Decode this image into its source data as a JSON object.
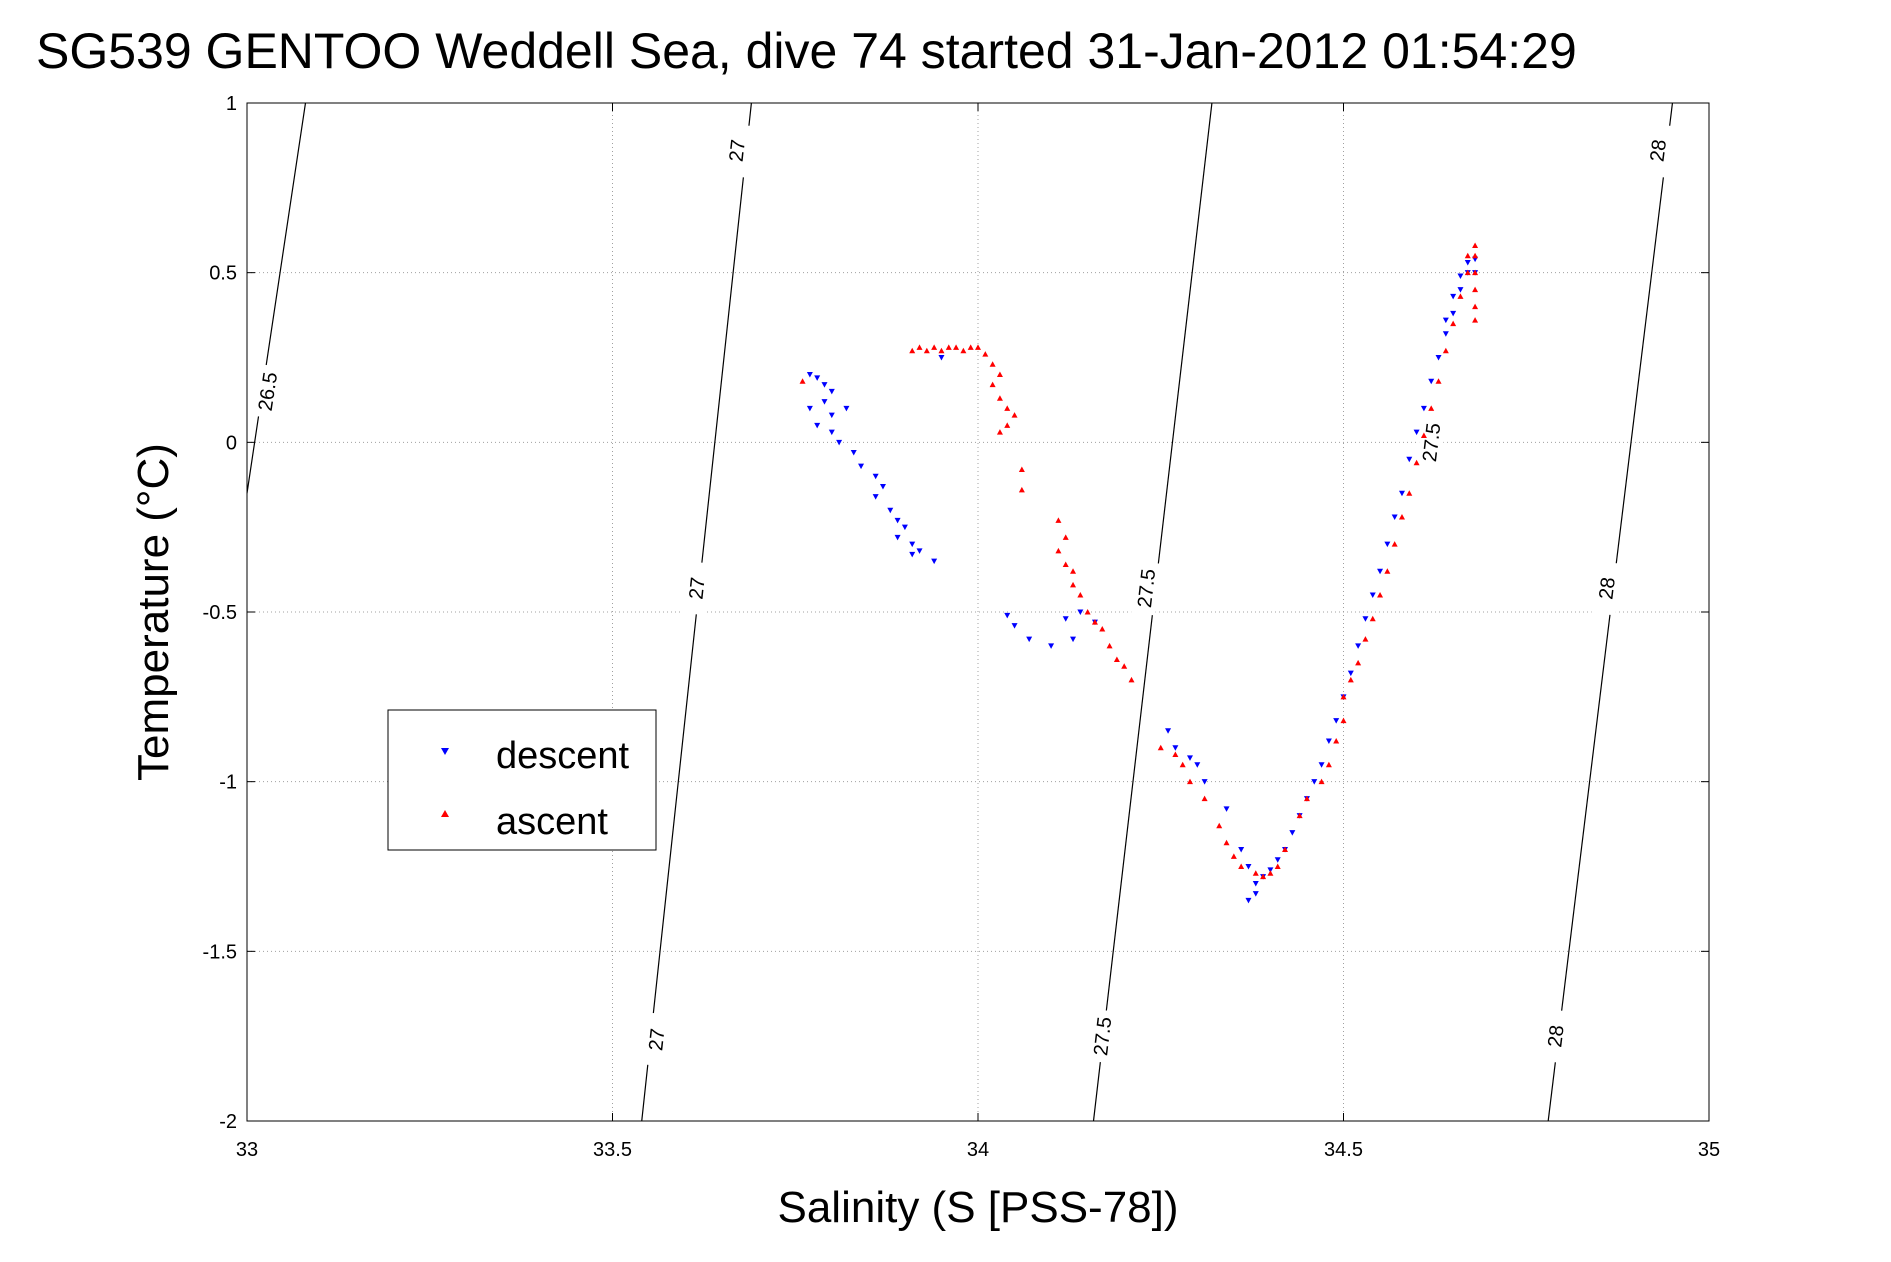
{
  "chart_data": {
    "type": "scatter",
    "title": "SG539 GENTOO Weddell Sea, dive 74 started 31-Jan-2012 01:54:29",
    "xlabel": "Salinity (S [PSS-78])",
    "ylabel": "Temperature (°C)",
    "xlim": [
      33,
      35
    ],
    "ylim": [
      -2,
      1
    ],
    "xticks": [
      "33",
      "33.5",
      "34",
      "34.5",
      "35"
    ],
    "yticks": [
      "1",
      "0.5",
      "0",
      "-0.5",
      "-1",
      "-1.5",
      "-2"
    ],
    "grid": true,
    "legend_position": "middle-left",
    "legend": [
      {
        "label": "descent",
        "color": "#0000ff",
        "marker": "triangle-down"
      },
      {
        "label": "ascent",
        "color": "#ff0000",
        "marker": "triangle-up"
      }
    ],
    "density_contours": [
      {
        "level": "26.5",
        "points": [
          [
            33.0,
            -0.15
          ],
          [
            33.08,
            1.0
          ]
        ],
        "label_positions": [
          [
            33.028,
            0.15
          ]
        ]
      },
      {
        "level": "27",
        "points": [
          [
            33.54,
            -2.0
          ],
          [
            33.69,
            1.0
          ]
        ],
        "label_positions": [
          [
            33.56,
            -1.76
          ],
          [
            33.615,
            -0.43
          ],
          [
            33.67,
            0.86
          ]
        ]
      },
      {
        "level": "27.5",
        "points": [
          [
            34.158,
            -2.0
          ],
          [
            34.32,
            1.0
          ]
        ],
        "label_positions": [
          [
            34.17,
            -1.75
          ],
          [
            34.23,
            -0.43
          ],
          [
            34.62,
            0.0
          ]
        ]
      },
      {
        "level": "28",
        "points": [
          [
            34.78,
            -2.0
          ],
          [
            34.95,
            1.0
          ]
        ],
        "label_positions": [
          [
            34.79,
            -1.75
          ],
          [
            34.86,
            -0.43
          ],
          [
            34.93,
            0.86
          ]
        ]
      }
    ],
    "series": [
      {
        "name": "descent",
        "color": "#0000ff",
        "points": [
          [
            33.77,
            0.2
          ],
          [
            33.78,
            0.19
          ],
          [
            33.79,
            0.17
          ],
          [
            33.8,
            0.15
          ],
          [
            33.79,
            0.12
          ],
          [
            33.77,
            0.1
          ],
          [
            33.8,
            0.08
          ],
          [
            33.82,
            0.1
          ],
          [
            33.78,
            0.05
          ],
          [
            33.8,
            0.03
          ],
          [
            33.81,
            0.0
          ],
          [
            33.83,
            -0.03
          ],
          [
            33.84,
            -0.07
          ],
          [
            33.86,
            -0.1
          ],
          [
            33.87,
            -0.13
          ],
          [
            33.86,
            -0.16
          ],
          [
            33.88,
            -0.2
          ],
          [
            33.89,
            -0.23
          ],
          [
            33.9,
            -0.25
          ],
          [
            33.89,
            -0.28
          ],
          [
            33.91,
            -0.3
          ],
          [
            33.92,
            -0.32
          ],
          [
            33.94,
            -0.35
          ],
          [
            33.91,
            -0.33
          ],
          [
            33.95,
            0.25
          ],
          [
            34.04,
            -0.51
          ],
          [
            34.05,
            -0.54
          ],
          [
            34.07,
            -0.58
          ],
          [
            34.1,
            -0.6
          ],
          [
            34.12,
            -0.52
          ],
          [
            34.14,
            -0.5
          ],
          [
            34.16,
            -0.53
          ],
          [
            34.13,
            -0.58
          ],
          [
            34.26,
            -0.85
          ],
          [
            34.27,
            -0.9
          ],
          [
            34.29,
            -0.93
          ],
          [
            34.3,
            -0.95
          ],
          [
            34.31,
            -1.0
          ],
          [
            34.34,
            -1.08
          ],
          [
            34.36,
            -1.2
          ],
          [
            34.37,
            -1.25
          ],
          [
            34.38,
            -1.3
          ],
          [
            34.38,
            -1.33
          ],
          [
            34.37,
            -1.35
          ],
          [
            34.39,
            -1.28
          ],
          [
            34.4,
            -1.26
          ],
          [
            34.41,
            -1.23
          ],
          [
            34.42,
            -1.2
          ],
          [
            34.43,
            -1.15
          ],
          [
            34.44,
            -1.1
          ],
          [
            34.45,
            -1.05
          ],
          [
            34.46,
            -1.0
          ],
          [
            34.47,
            -0.95
          ],
          [
            34.48,
            -0.88
          ],
          [
            34.49,
            -0.82
          ],
          [
            34.5,
            -0.75
          ],
          [
            34.51,
            -0.68
          ],
          [
            34.52,
            -0.6
          ],
          [
            34.53,
            -0.52
          ],
          [
            34.54,
            -0.45
          ],
          [
            34.55,
            -0.38
          ],
          [
            34.56,
            -0.3
          ],
          [
            34.57,
            -0.22
          ],
          [
            34.58,
            -0.15
          ],
          [
            34.59,
            -0.05
          ],
          [
            34.6,
            0.03
          ],
          [
            34.61,
            0.1
          ],
          [
            34.62,
            0.18
          ],
          [
            34.63,
            0.25
          ],
          [
            34.64,
            0.32
          ],
          [
            34.65,
            0.38
          ],
          [
            34.66,
            0.45
          ],
          [
            34.67,
            0.5
          ],
          [
            34.68,
            0.54
          ],
          [
            34.68,
            0.5
          ],
          [
            34.67,
            0.53
          ],
          [
            34.66,
            0.49
          ],
          [
            34.65,
            0.43
          ],
          [
            34.64,
            0.36
          ]
        ]
      },
      {
        "name": "ascent",
        "color": "#ff0000",
        "points": [
          [
            33.76,
            0.18
          ],
          [
            33.91,
            0.27
          ],
          [
            33.92,
            0.28
          ],
          [
            33.93,
            0.27
          ],
          [
            33.94,
            0.28
          ],
          [
            33.95,
            0.27
          ],
          [
            33.96,
            0.28
          ],
          [
            33.97,
            0.28
          ],
          [
            33.98,
            0.27
          ],
          [
            33.99,
            0.28
          ],
          [
            34.0,
            0.28
          ],
          [
            34.01,
            0.26
          ],
          [
            34.02,
            0.23
          ],
          [
            34.03,
            0.2
          ],
          [
            34.02,
            0.17
          ],
          [
            34.03,
            0.13
          ],
          [
            34.04,
            0.1
          ],
          [
            34.05,
            0.08
          ],
          [
            34.04,
            0.05
          ],
          [
            34.03,
            0.03
          ],
          [
            34.06,
            -0.08
          ],
          [
            34.06,
            -0.14
          ],
          [
            34.11,
            -0.23
          ],
          [
            34.12,
            -0.28
          ],
          [
            34.11,
            -0.32
          ],
          [
            34.12,
            -0.36
          ],
          [
            34.13,
            -0.38
          ],
          [
            34.13,
            -0.42
          ],
          [
            34.14,
            -0.45
          ],
          [
            34.15,
            -0.5
          ],
          [
            34.16,
            -0.53
          ],
          [
            34.17,
            -0.55
          ],
          [
            34.18,
            -0.6
          ],
          [
            34.19,
            -0.64
          ],
          [
            34.2,
            -0.66
          ],
          [
            34.21,
            -0.7
          ],
          [
            34.25,
            -0.9
          ],
          [
            34.27,
            -0.92
          ],
          [
            34.28,
            -0.95
          ],
          [
            34.29,
            -1.0
          ],
          [
            34.31,
            -1.05
          ],
          [
            34.33,
            -1.13
          ],
          [
            34.34,
            -1.18
          ],
          [
            34.35,
            -1.22
          ],
          [
            34.36,
            -1.25
          ],
          [
            34.38,
            -1.27
          ],
          [
            34.39,
            -1.28
          ],
          [
            34.4,
            -1.27
          ],
          [
            34.41,
            -1.25
          ],
          [
            34.42,
            -1.2
          ],
          [
            34.44,
            -1.1
          ],
          [
            34.45,
            -1.05
          ],
          [
            34.47,
            -1.0
          ],
          [
            34.48,
            -0.95
          ],
          [
            34.49,
            -0.88
          ],
          [
            34.5,
            -0.82
          ],
          [
            34.5,
            -0.75
          ],
          [
            34.51,
            -0.7
          ],
          [
            34.52,
            -0.65
          ],
          [
            34.53,
            -0.58
          ],
          [
            34.54,
            -0.52
          ],
          [
            34.55,
            -0.45
          ],
          [
            34.56,
            -0.38
          ],
          [
            34.57,
            -0.3
          ],
          [
            34.58,
            -0.22
          ],
          [
            34.59,
            -0.15
          ],
          [
            34.6,
            -0.06
          ],
          [
            34.61,
            0.02
          ],
          [
            34.62,
            0.1
          ],
          [
            34.63,
            0.18
          ],
          [
            34.64,
            0.27
          ],
          [
            34.65,
            0.35
          ],
          [
            34.66,
            0.43
          ],
          [
            34.67,
            0.5
          ],
          [
            34.67,
            0.55
          ],
          [
            34.68,
            0.58
          ],
          [
            34.68,
            0.55
          ],
          [
            34.68,
            0.5
          ],
          [
            34.68,
            0.45
          ],
          [
            34.68,
            0.4
          ],
          [
            34.68,
            0.36
          ]
        ]
      }
    ]
  }
}
